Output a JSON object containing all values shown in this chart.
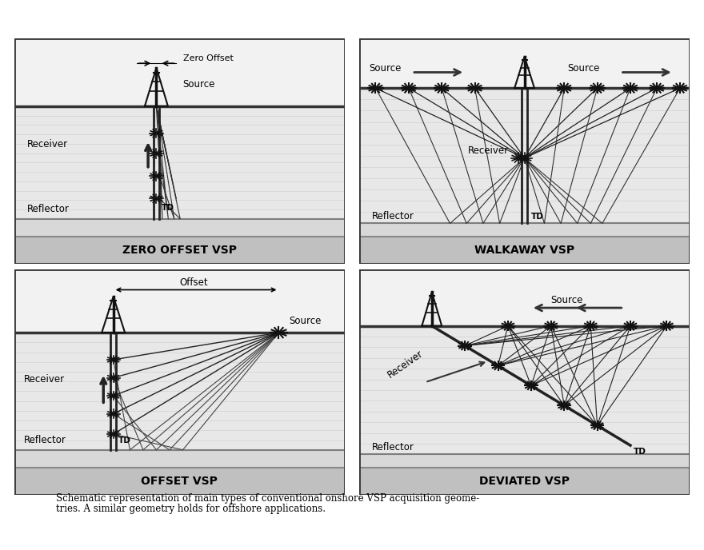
{
  "panel_titles": [
    "ZERO OFFSET VSP",
    "WALKAWAY VSP",
    "OFFSET VSP",
    "DEVIATED VSP"
  ],
  "caption_line1": "Schematic representation of main types of conventional onshore VSP acquisition geome-",
  "caption_line2": "tries. A similar geometry holds for offshore applications.",
  "fig_width": 8.8,
  "fig_height": 6.88,
  "bg_above_ground": "#f0f0f0",
  "bg_subsurface": "#e0e0e0",
  "bg_reflector": "#d0d0d0",
  "title_bar_color": "#b8b8b8",
  "stripe_color": "#d8d8d8",
  "ground_line_color": "#444444",
  "well_color": "#222222",
  "ray_color": "#333333",
  "border_color": "#333333"
}
